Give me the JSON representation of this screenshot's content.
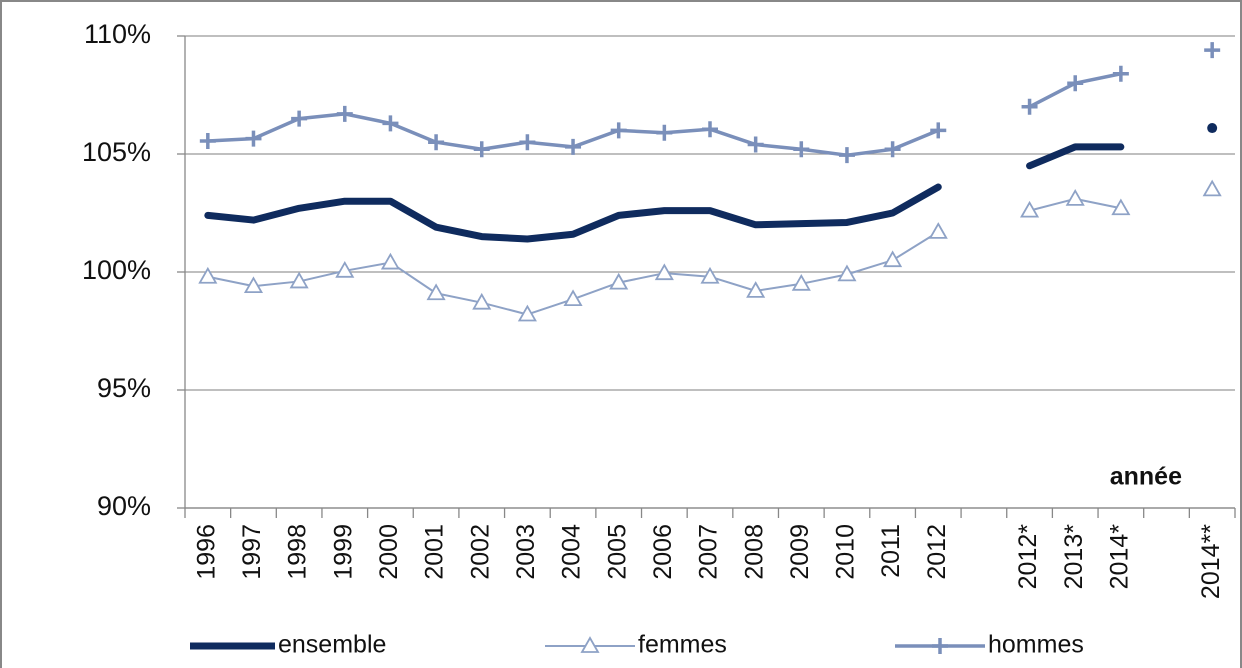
{
  "chart_data": {
    "type": "line",
    "categories": [
      "1996",
      "1997",
      "1998",
      "1999",
      "2000",
      "2001",
      "2002",
      "2003",
      "2004",
      "2005",
      "2006",
      "2007",
      "2008",
      "2009",
      "2010",
      "2011",
      "2012",
      null,
      "2012*",
      "2013*",
      "2014*",
      null,
      "2014**"
    ],
    "series": [
      {
        "name": "ensemble",
        "color": "#0f2b5e",
        "marker": "none",
        "values": [
          102.4,
          102.2,
          102.7,
          103.0,
          103.0,
          101.9,
          101.5,
          101.4,
          101.6,
          102.4,
          102.6,
          102.6,
          102.0,
          102.05,
          102.1,
          102.5,
          103.6,
          null,
          104.5,
          105.3,
          105.3,
          null,
          106.1
        ]
      },
      {
        "name": "femmes",
        "color": "#8ea2c6",
        "marker": "triangle",
        "values": [
          99.8,
          99.4,
          99.6,
          100.05,
          100.4,
          99.1,
          98.7,
          98.2,
          98.85,
          99.55,
          99.95,
          99.8,
          99.2,
          99.5,
          99.9,
          100.5,
          101.7,
          null,
          102.6,
          103.1,
          102.7,
          null,
          103.5
        ]
      },
      {
        "name": "hommes",
        "color": "#7a8fba",
        "marker": "plus",
        "values": [
          105.55,
          105.65,
          106.5,
          106.7,
          106.3,
          105.5,
          105.2,
          105.5,
          105.3,
          106.0,
          105.9,
          106.05,
          105.4,
          105.2,
          104.95,
          105.2,
          106.0,
          null,
          107.0,
          108.0,
          108.4,
          null,
          109.4
        ]
      }
    ],
    "ylim": [
      90,
      110
    ],
    "yticks": [
      {
        "value": 90,
        "label": "90%"
      },
      {
        "value": 95,
        "label": "95%"
      },
      {
        "value": 100,
        "label": "100%"
      },
      {
        "value": 105,
        "label": "105%"
      },
      {
        "value": 110,
        "label": "110%"
      }
    ],
    "grid": true,
    "xlabel": "année",
    "legend": "bottom"
  }
}
